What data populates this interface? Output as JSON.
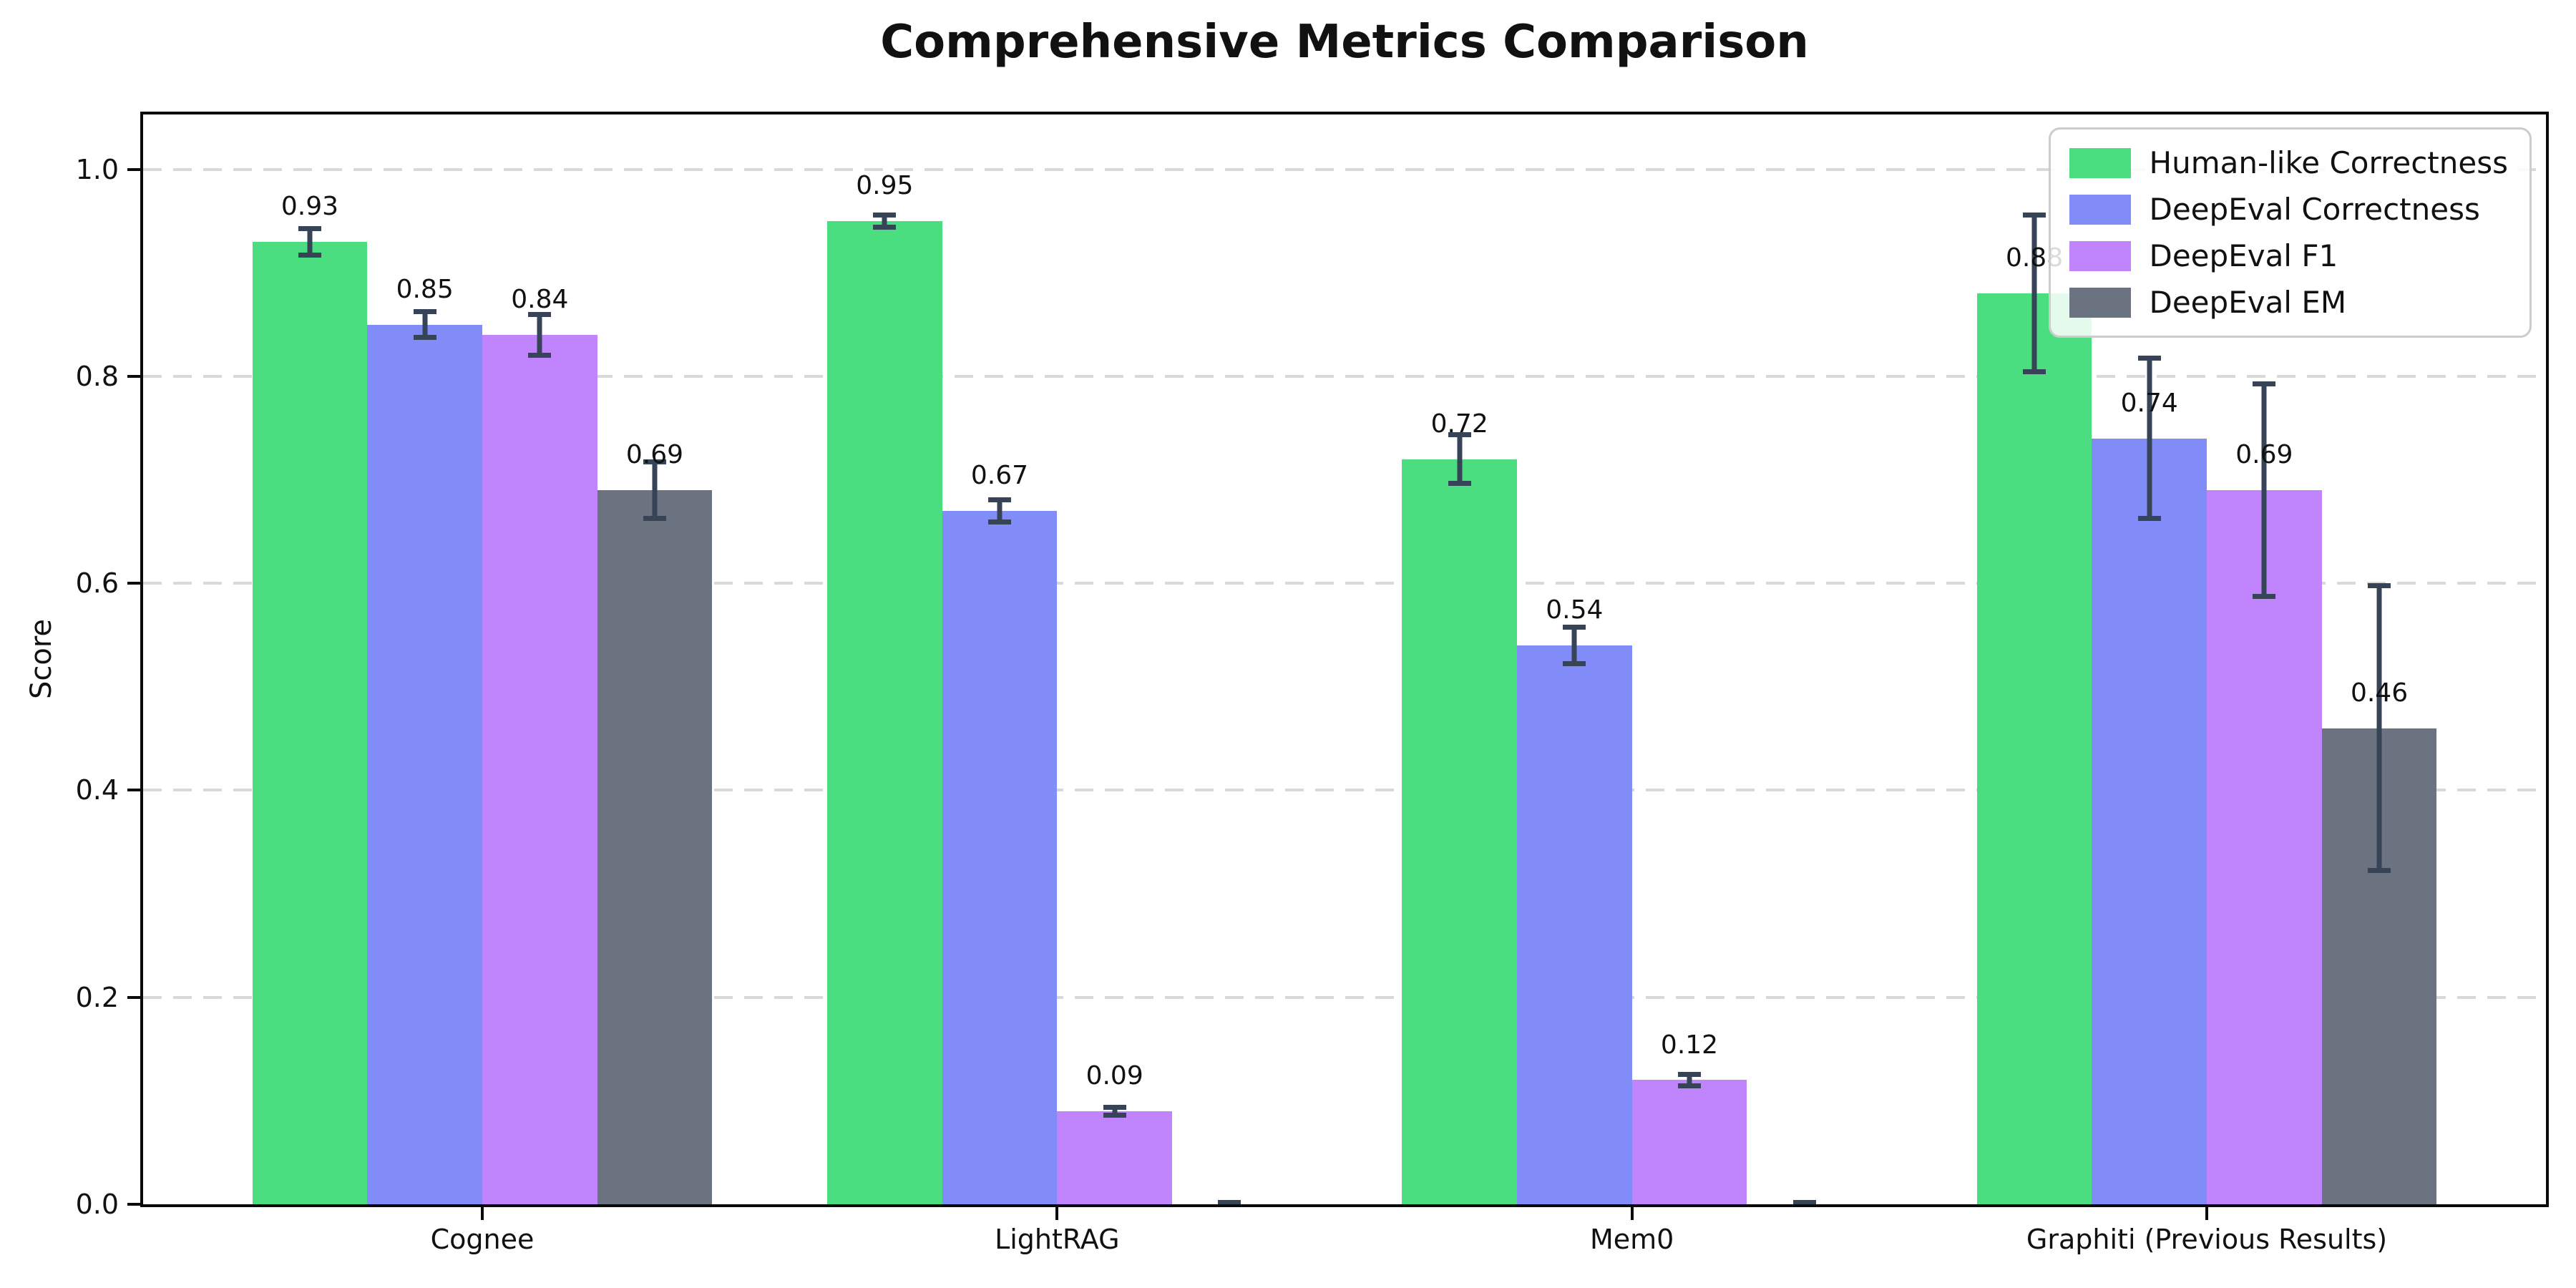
{
  "chart_data": {
    "type": "bar",
    "title": "Comprehensive Metrics Comparison",
    "ylabel": "Score",
    "categories": [
      "Cognee",
      "LightRAG",
      "Mem0",
      "Graphiti (Previous Results)"
    ],
    "series": [
      {
        "name": "Human-like Correctness",
        "color": "#4ade80",
        "values": [
          0.93,
          0.95,
          0.72,
          0.88
        ],
        "errors": [
          0.015,
          0.008,
          0.026,
          0.078
        ],
        "labels": [
          "0.93",
          "0.95",
          "0.72",
          "0.88"
        ]
      },
      {
        "name": "DeepEval Correctness",
        "color": "#818cf8",
        "values": [
          0.85,
          0.67,
          0.54,
          0.74
        ],
        "errors": [
          0.015,
          0.013,
          0.02,
          0.08
        ],
        "labels": [
          "0.85",
          "0.67",
          "0.54",
          "0.74"
        ]
      },
      {
        "name": "DeepEval F1",
        "color": "#c084fc",
        "values": [
          0.84,
          0.09,
          0.12,
          0.69
        ],
        "errors": [
          0.022,
          0.006,
          0.008,
          0.105
        ],
        "labels": [
          "0.84",
          "0.09",
          "0.12",
          "0.69"
        ]
      },
      {
        "name": "DeepEval EM",
        "color": "#6b7280",
        "values": [
          0.69,
          0.0,
          0.0,
          0.46
        ],
        "errors": [
          0.03,
          0.004,
          0.004,
          0.14
        ],
        "labels": [
          "0.69",
          null,
          null,
          "0.46"
        ]
      }
    ],
    "yticks": [
      {
        "value": 0.0,
        "label": "0.0"
      },
      {
        "value": 0.2,
        "label": "0.2"
      },
      {
        "value": 0.4,
        "label": "0.4"
      },
      {
        "value": 0.6,
        "label": "0.6"
      },
      {
        "value": 0.8,
        "label": "0.8"
      },
      {
        "value": 1.0,
        "label": "1.0"
      }
    ],
    "ylim": [
      0,
      1.053
    ],
    "xlim": [
      -0.59,
      3.59
    ],
    "bar_width_units": 0.2,
    "value_label_offset": 0.02,
    "grid": "dashed-horizontal",
    "grid_color": "#d9d9d9",
    "axis_color": "#0a0a0a",
    "error_bar_color": "#374357",
    "legend_position": "top-right"
  }
}
